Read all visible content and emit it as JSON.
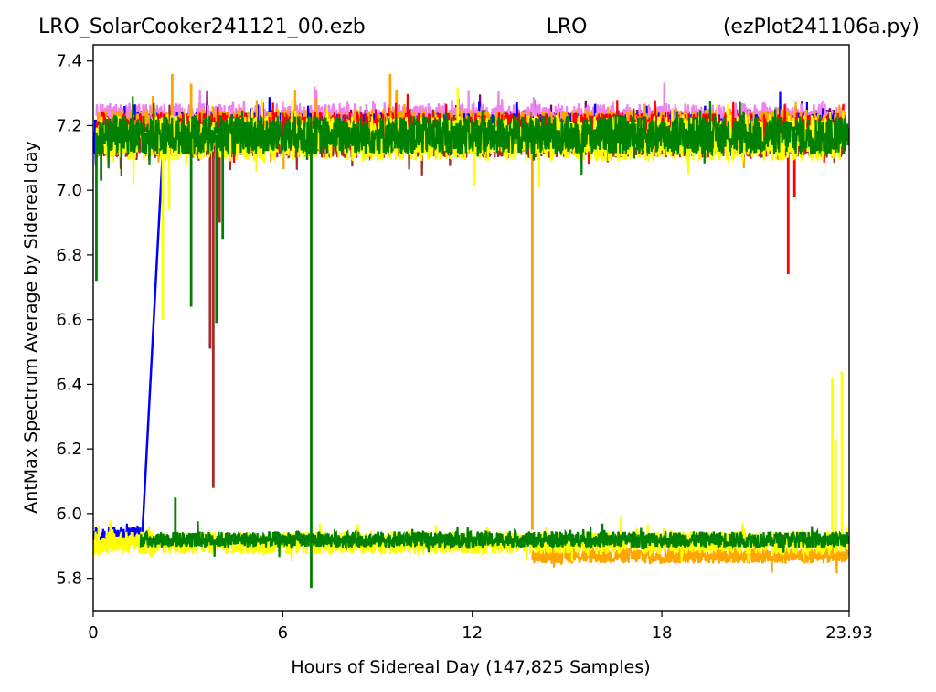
{
  "header": {
    "left": "LRO_SolarCooker241121_00.ezb",
    "center": "LRO",
    "right": "(ezPlot241106a.py)"
  },
  "chart_data": {
    "type": "line",
    "xlabel": "Hours of Sidereal Day  (147,825 Samples)",
    "ylabel": "AntMax Spectrum Average by Sidereal day",
    "xlim": [
      0,
      23.93
    ],
    "ylim": [
      5.7,
      7.45
    ],
    "x_ticks": [
      0,
      6,
      12,
      18,
      23.93
    ],
    "x_tick_labels": [
      "0",
      "6",
      "12",
      "18",
      "23.93"
    ],
    "y_ticks": [
      5.8,
      6.0,
      6.2,
      6.4,
      6.6,
      6.8,
      7.0,
      7.2,
      7.4
    ],
    "y_tick_labels": [
      "5.8",
      "6.0",
      "6.2",
      "6.4",
      "6.6",
      "6.8",
      "7.0",
      "7.2",
      "7.4"
    ],
    "grid": false,
    "legend": "none",
    "series": [
      {
        "color": "#800080",
        "bands": [
          {
            "x": [
              0.1,
              23.8
            ],
            "center": 7.2,
            "amp": 0.05
          }
        ]
      },
      {
        "color": "#ee82ee",
        "bands": [
          {
            "x": [
              0.1,
              23.8
            ],
            "center": 7.22,
            "amp": 0.05
          }
        ]
      },
      {
        "color": "#0000ff",
        "bands": [
          {
            "x": [
              0.0,
              1.5
            ],
            "center": 5.93,
            "amp": 0.03
          },
          {
            "x": [
              0.0,
              1.2
            ],
            "center": 7.17,
            "amp": 0.06
          },
          {
            "x": [
              1.2,
              23.8
            ],
            "center": 7.19,
            "amp": 0.05
          }
        ],
        "lines": [
          {
            "x": [
              1.55,
              2.2
            ],
            "y": [
              5.93,
              7.12
            ]
          }
        ]
      },
      {
        "color": "#ffa500",
        "bands": [
          {
            "x": [
              0.1,
              23.8
            ],
            "center": 7.19,
            "amp": 0.06
          },
          {
            "x": [
              13.9,
              23.9
            ],
            "center": 5.87,
            "amp": 0.025
          }
        ],
        "spikes": [
          {
            "x": 2.5,
            "y": 7.36
          },
          {
            "x": 3.1,
            "y": 7.33
          },
          {
            "x": 9.4,
            "y": 7.36
          },
          {
            "x": 9.6,
            "y": 7.31
          },
          {
            "x": 13.9,
            "y": 5.95
          },
          {
            "x": 23.5,
            "y": 7.22
          }
        ]
      },
      {
        "color": "#ff0000",
        "bands": [
          {
            "x": [
              0.1,
              23.8
            ],
            "center": 7.18,
            "amp": 0.06
          }
        ],
        "spikes": [
          {
            "x": 22.0,
            "y": 6.74
          },
          {
            "x": 22.2,
            "y": 6.98
          }
        ]
      },
      {
        "color": "#a52a2a",
        "bands": [
          {
            "x": [
              0.1,
              23.8
            ],
            "center": 7.15,
            "amp": 0.05
          }
        ],
        "spikes": [
          {
            "x": 3.7,
            "y": 6.51
          },
          {
            "x": 3.8,
            "y": 6.08
          },
          {
            "x": 4.0,
            "y": 6.9
          }
        ]
      },
      {
        "color": "#ffff00",
        "bands": [
          {
            "x": [
              0.1,
              23.8
            ],
            "center": 7.16,
            "amp": 0.07
          },
          {
            "x": [
              0.0,
              23.9
            ],
            "center": 5.91,
            "amp": 0.035
          }
        ],
        "spikes": [
          {
            "x": 2.2,
            "y": 6.6
          },
          {
            "x": 2.4,
            "y": 6.94
          },
          {
            "x": 23.4,
            "y": 6.42
          },
          {
            "x": 23.5,
            "y": 6.23
          },
          {
            "x": 23.7,
            "y": 6.44
          }
        ]
      },
      {
        "color": "#008000",
        "bands": [
          {
            "x": [
              0.1,
              23.9
            ],
            "center": 7.17,
            "amp": 0.06
          },
          {
            "x": [
              1.5,
              23.9
            ],
            "center": 5.92,
            "amp": 0.025
          }
        ],
        "spikes": [
          {
            "x": 0.1,
            "y": 6.72
          },
          {
            "x": 0.25,
            "y": 7.03
          },
          {
            "x": 2.6,
            "y": 6.05
          },
          {
            "x": 3.1,
            "y": 6.64
          },
          {
            "x": 3.9,
            "y": 6.59
          },
          {
            "x": 4.1,
            "y": 6.85
          },
          {
            "x": 6.9,
            "y": 5.77
          }
        ]
      }
    ]
  }
}
